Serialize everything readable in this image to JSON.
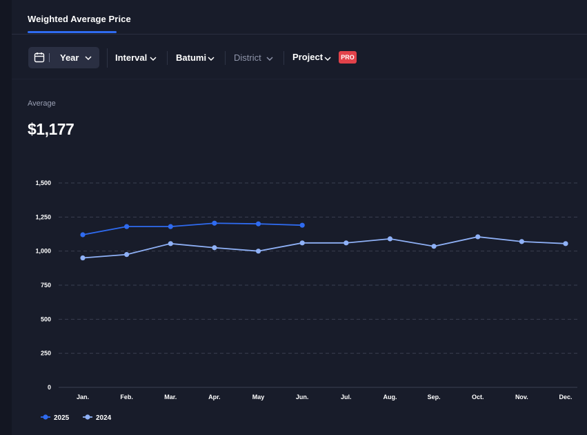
{
  "tabs": [
    {
      "label": "Weighted Average Price",
      "active": true
    }
  ],
  "toolbar": {
    "year_label": "Year",
    "interval_label": "Interval",
    "city_label": "Batumi",
    "district_label": "District",
    "project_label": "Project",
    "pro_badge": "PRO"
  },
  "summary": {
    "average_label": "Average",
    "average_value": "$1,177"
  },
  "colors": {
    "series_2025": "#2f6bf0",
    "series_2024": "#8fb1f7",
    "grid": "#3a3f52",
    "accent": "#2f6bf0",
    "badge": "#e2424a"
  },
  "chart_data": {
    "type": "line",
    "categories": [
      "Jan.",
      "Feb.",
      "Mar.",
      "Apr.",
      "May",
      "Jun.",
      "Jul.",
      "Aug.",
      "Sep.",
      "Oct.",
      "Nov.",
      "Dec."
    ],
    "series": [
      {
        "name": "2025",
        "values": [
          1120,
          1180,
          1180,
          1205,
          1200,
          1190,
          null,
          null,
          null,
          null,
          null,
          null
        ]
      },
      {
        "name": "2024",
        "values": [
          950,
          975,
          1055,
          1025,
          1000,
          1060,
          1060,
          1090,
          1035,
          1105,
          1070,
          1055
        ]
      }
    ],
    "yticks": [
      "0",
      "250",
      "500",
      "750",
      "1,000",
      "1,250",
      "1,500"
    ],
    "ytick_values": [
      0,
      250,
      500,
      750,
      1000,
      1250,
      1500
    ],
    "ylim": [
      0,
      1500
    ],
    "title": "",
    "xlabel": "",
    "ylabel": "",
    "grid": true,
    "legend_position": "bottom-left"
  }
}
